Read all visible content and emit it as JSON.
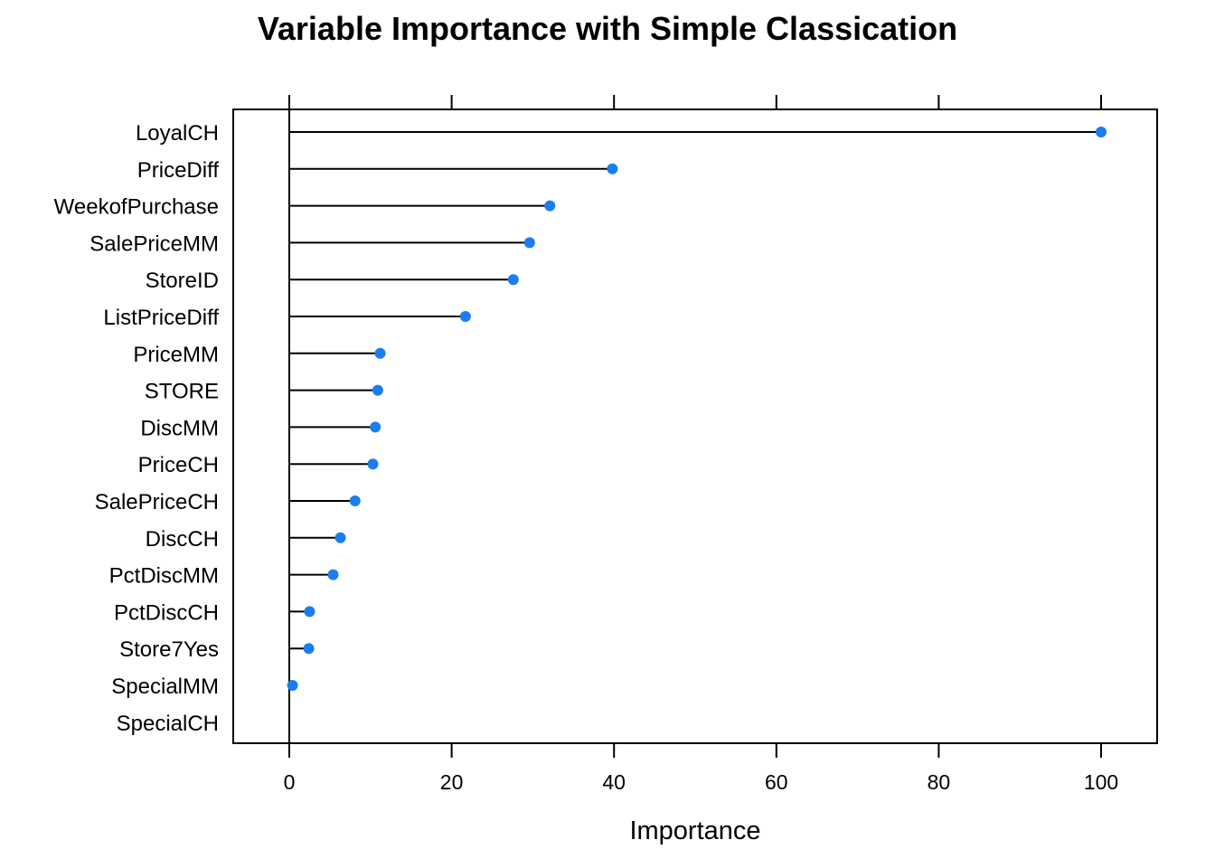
{
  "chart_data": {
    "type": "dot",
    "title": "Variable Importance with Simple Classication",
    "xlabel": "Importance",
    "ylabel": "",
    "xlim": [
      -7,
      107
    ],
    "xticks": [
      0,
      20,
      40,
      60,
      80,
      100
    ],
    "grid": false,
    "point_color": "#1a7ef0",
    "line_color": "#000000",
    "categories": [
      "LoyalCH",
      "PriceDiff",
      "WeekofPurchase",
      "SalePriceMM",
      "StoreID",
      "ListPriceDiff",
      "PriceMM",
      "STORE",
      "DiscMM",
      "PriceCH",
      "SalePriceCH",
      "DiscCH",
      "PctDiscMM",
      "PctDiscCH",
      "Store7Yes",
      "SpecialMM",
      "SpecialCH"
    ],
    "values": [
      100,
      39.8,
      32.1,
      29.6,
      27.6,
      21.7,
      11.2,
      10.9,
      10.6,
      10.3,
      8.1,
      6.3,
      5.4,
      2.5,
      2.4,
      0.4,
      0
    ]
  }
}
